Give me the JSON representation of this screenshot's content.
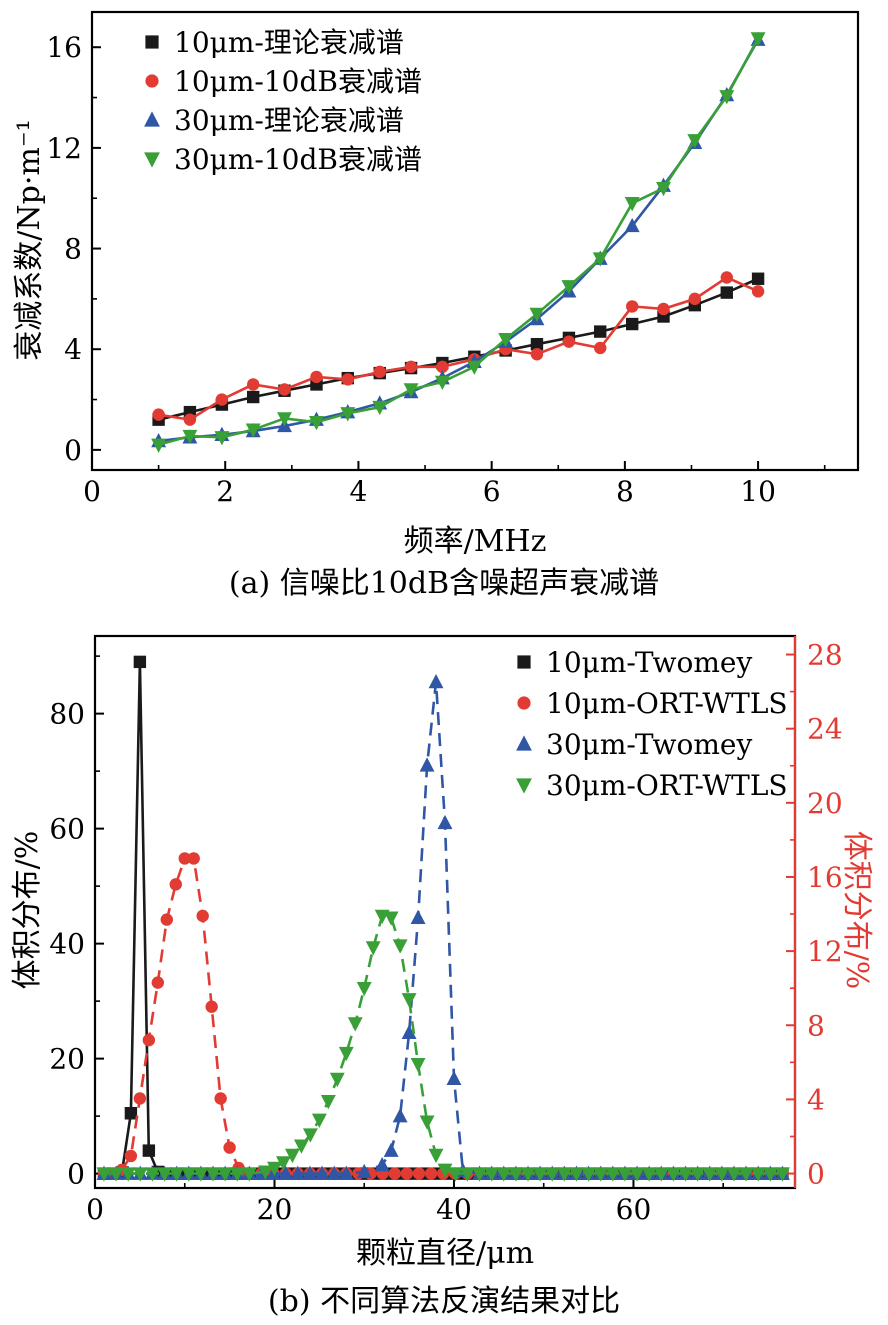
{
  "chart_data": [
    {
      "type": "line",
      "caption": "(a) 信噪比10dB含噪超声衰减谱",
      "xlabel": "频率/MHz",
      "ylabel": "衰减系数/Np·m⁻¹",
      "xlim": [
        0,
        11.5
      ],
      "ylim": [
        -0.8,
        17.4
      ],
      "xticks": [
        0,
        2,
        4,
        6,
        8,
        10
      ],
      "xminor": [
        1,
        3,
        5,
        7,
        9,
        11
      ],
      "yticks": [
        0,
        4,
        8,
        12,
        16
      ],
      "yminor": [
        2,
        6,
        10,
        14
      ],
      "grid": false,
      "legend_position": "top-left",
      "series": [
        {
          "name": "10μm-理论衰减谱",
          "color": "#1a1a1a",
          "marker": "square",
          "dash": false,
          "x": [
            1.0,
            1.47,
            1.95,
            2.42,
            2.89,
            3.37,
            3.84,
            4.32,
            4.79,
            5.26,
            5.74,
            6.21,
            6.68,
            7.16,
            7.63,
            8.11,
            8.58,
            9.05,
            9.53,
            10.0
          ],
          "y": [
            1.2,
            1.5,
            1.8,
            2.1,
            2.35,
            2.6,
            2.85,
            3.05,
            3.25,
            3.45,
            3.7,
            3.95,
            4.2,
            4.45,
            4.7,
            5.0,
            5.3,
            5.75,
            6.25,
            6.8
          ]
        },
        {
          "name": "10μm-10dB衰减谱",
          "color": "#e23b33",
          "marker": "circle",
          "dash": false,
          "x": [
            1.0,
            1.47,
            1.95,
            2.42,
            2.89,
            3.37,
            3.84,
            4.32,
            4.79,
            5.26,
            5.74,
            6.21,
            6.68,
            7.16,
            7.63,
            8.11,
            8.58,
            9.05,
            9.53,
            10.0
          ],
          "y": [
            1.4,
            1.2,
            2.0,
            2.6,
            2.4,
            2.9,
            2.8,
            3.1,
            3.3,
            3.3,
            3.6,
            4.0,
            3.8,
            4.3,
            4.05,
            5.7,
            5.6,
            6.0,
            6.85,
            6.3
          ]
        },
        {
          "name": "30μm-理论衰减谱",
          "color": "#3057a5",
          "marker": "triangle-up",
          "dash": false,
          "x": [
            1.0,
            1.47,
            1.95,
            2.42,
            2.89,
            3.37,
            3.84,
            4.32,
            4.79,
            5.26,
            5.74,
            6.21,
            6.68,
            7.16,
            7.63,
            8.11,
            8.58,
            9.05,
            9.53,
            10.0
          ],
          "y": [
            0.35,
            0.5,
            0.6,
            0.75,
            0.95,
            1.2,
            1.5,
            1.85,
            2.3,
            2.85,
            3.5,
            4.3,
            5.2,
            6.3,
            7.6,
            8.9,
            10.5,
            12.2,
            14.1,
            16.3
          ]
        },
        {
          "name": "30μm-10dB衰减谱",
          "color": "#39a037",
          "marker": "triangle-down",
          "dash": false,
          "x": [
            1.0,
            1.47,
            1.95,
            2.42,
            2.89,
            3.37,
            3.84,
            4.32,
            4.79,
            5.26,
            5.74,
            6.21,
            6.68,
            7.16,
            7.63,
            8.11,
            8.58,
            9.05,
            9.53,
            10.0
          ],
          "y": [
            0.2,
            0.55,
            0.5,
            0.8,
            1.25,
            1.1,
            1.45,
            1.7,
            2.4,
            2.7,
            3.3,
            4.4,
            5.4,
            6.5,
            7.6,
            9.8,
            10.4,
            12.3,
            14.05,
            16.35
          ]
        }
      ]
    },
    {
      "type": "line",
      "caption": "(b) 不同算法反演结果对比",
      "xlabel": "颗粒直径/μm",
      "ylabel_left": "体积分布/%",
      "ylabel_right": "体积分布/%",
      "xlim": [
        0,
        78
      ],
      "ylim": [
        -2.5,
        93.5
      ],
      "y2lim": [
        -0.78,
        29.0
      ],
      "xticks": [
        0,
        20,
        40,
        60
      ],
      "xminor": [
        10,
        30,
        50,
        70
      ],
      "yticks": [
        0,
        20,
        40,
        60,
        80
      ],
      "yminor": [
        10,
        30,
        50,
        70,
        90
      ],
      "y2ticks": [
        0,
        4,
        8,
        12,
        16,
        20,
        24,
        28
      ],
      "y2minor": [
        2,
        6,
        10,
        14,
        18,
        22,
        26
      ],
      "y2color": "#e23b33",
      "grid": false,
      "legend_position": "top-right",
      "baseline": {
        "from": 1,
        "to": 77.2,
        "step": 1.35
      },
      "series": [
        {
          "name": "10μm-Twomey",
          "color": "#1a1a1a",
          "marker": "square",
          "axis": "left",
          "dash": false,
          "x": [
            1,
            2,
            3,
            4,
            5,
            6,
            7,
            8
          ],
          "y": [
            0,
            0,
            0.2,
            10.5,
            89,
            4,
            0.3,
            0
          ]
        },
        {
          "name": "10μm-ORT-WTLS",
          "color": "#e23b33",
          "marker": "circle",
          "axis": "right",
          "dash": true,
          "x": [
            2,
            3,
            4,
            5,
            6,
            7,
            8,
            9,
            10,
            11,
            12,
            13,
            14,
            15,
            16,
            17
          ],
          "y": [
            0,
            0.2,
            0.95,
            4.05,
            7.2,
            10.3,
            13.7,
            15.6,
            17.0,
            17.0,
            13.9,
            9.0,
            4.05,
            1.4,
            0.3,
            0
          ]
        },
        {
          "name": "30μm-Twomey",
          "color": "#3057a5",
          "marker": "triangle-up",
          "axis": "left",
          "dash": true,
          "x": [
            30,
            32,
            33,
            34,
            35,
            36,
            37,
            38,
            39,
            40,
            41
          ],
          "y": [
            0.3,
            1.5,
            4,
            10,
            24.5,
            44.5,
            71,
            85.5,
            61,
            16.5,
            0.5
          ]
        },
        {
          "name": "30μm-ORT-WTLS",
          "color": "#39a037",
          "marker": "triangle-down",
          "axis": "right",
          "dash": true,
          "x": [
            19,
            20,
            21,
            22,
            23,
            24,
            25,
            26,
            27,
            28,
            29,
            30,
            31,
            32,
            33,
            34,
            35,
            36,
            37,
            38,
            39
          ],
          "y": [
            0.1,
            0.3,
            0.6,
            1.0,
            1.5,
            2.1,
            2.9,
            3.9,
            5.1,
            6.5,
            8.1,
            10.0,
            12.2,
            13.9,
            13.8,
            12.3,
            9.4,
            5.9,
            2.8,
            1.0,
            0.2
          ]
        }
      ]
    }
  ]
}
